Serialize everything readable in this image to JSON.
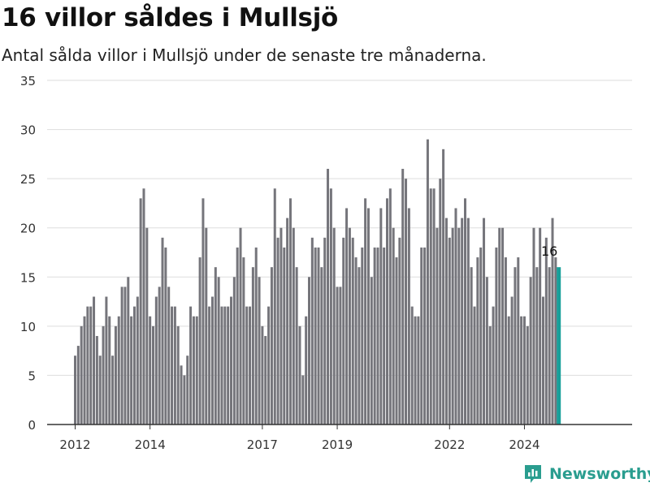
{
  "header": {
    "title": "16 villor såldes i Mullsjö",
    "subtitle": "Antal sålda villor i Mullsjö under de senaste tre månaderna."
  },
  "brand": {
    "name": "Newsworthy",
    "icon": "newsworthy-logo-icon"
  },
  "colors": {
    "bar": "#75757b",
    "highlight": "#17a09a",
    "grid": "#dddddd",
    "axis": "#333333",
    "brand": "#2a9d8f"
  },
  "chart_data": {
    "type": "bar",
    "title": "16 villor såldes i Mullsjö",
    "subtitle": "Antal sålda villor i Mullsjö under de senaste tre månaderna.",
    "xlabel": "",
    "ylabel": "",
    "ylim": [
      0,
      35
    ],
    "yticks": [
      0,
      5,
      10,
      15,
      20,
      25,
      30,
      35
    ],
    "xticks": [
      {
        "label": "2012",
        "date": "2012-01"
      },
      {
        "label": "2014",
        "date": "2014-01"
      },
      {
        "label": "2017",
        "date": "2017-01"
      },
      {
        "label": "2019",
        "date": "2019-01"
      },
      {
        "label": "2022",
        "date": "2022-01"
      },
      {
        "label": "2024",
        "date": "2024-01"
      }
    ],
    "grid": true,
    "legend": "none",
    "start": "2012-01",
    "end": "2024-09",
    "values": [
      7,
      8,
      10,
      11,
      12,
      12,
      13,
      9,
      7,
      10,
      13,
      11,
      7,
      10,
      11,
      14,
      14,
      15,
      11,
      12,
      13,
      23,
      24,
      20,
      11,
      10,
      13,
      14,
      19,
      18,
      14,
      12,
      12,
      10,
      6,
      5,
      7,
      12,
      11,
      11,
      17,
      23,
      20,
      12,
      13,
      16,
      15,
      12,
      12,
      12,
      13,
      15,
      18,
      20,
      17,
      12,
      12,
      16,
      18,
      15,
      10,
      9,
      12,
      16,
      24,
      19,
      20,
      18,
      21,
      23,
      20,
      16,
      10,
      5,
      11,
      15,
      19,
      18,
      18,
      16,
      19,
      26,
      24,
      20,
      14,
      14,
      19,
      22,
      20,
      19,
      17,
      16,
      18,
      23,
      22,
      15,
      18,
      18,
      22,
      18,
      23,
      24,
      20,
      17,
      19,
      26,
      25,
      22,
      12,
      11,
      11,
      18,
      18,
      29,
      24,
      24,
      20,
      25,
      28,
      21,
      19,
      20,
      22,
      20,
      21,
      23,
      21,
      16,
      12,
      17,
      18,
      21,
      15,
      10,
      12,
      18,
      20,
      20,
      17,
      11,
      13,
      16,
      17,
      11,
      11,
      10,
      15,
      20,
      16,
      20,
      13,
      19,
      16,
      21,
      17,
      16
    ],
    "highlight": {
      "date": "2024-09",
      "value": 16,
      "label": "16"
    }
  }
}
